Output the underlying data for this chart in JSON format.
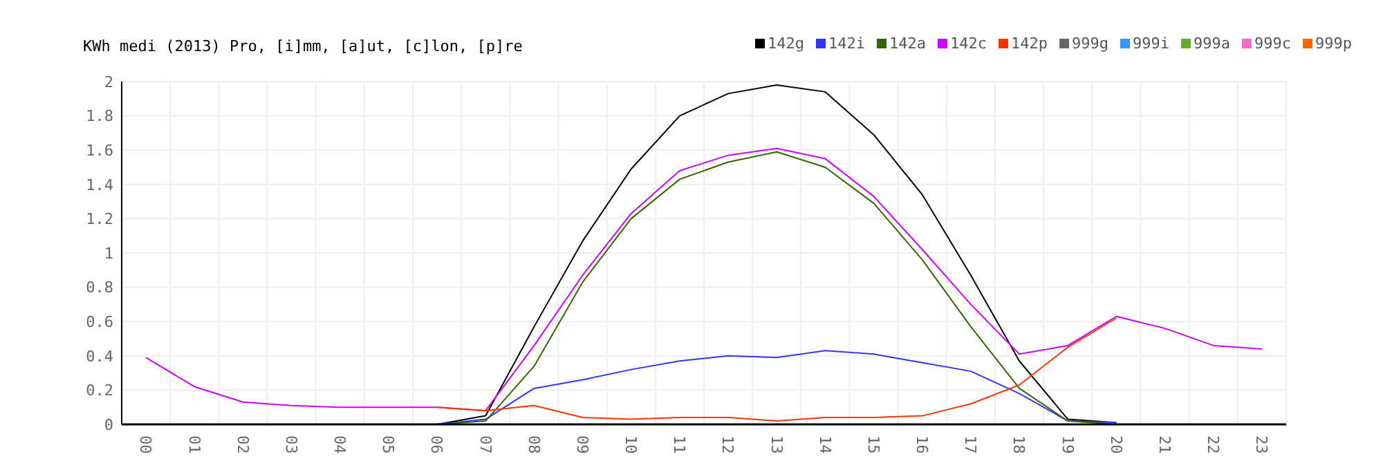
{
  "chart_data": {
    "type": "line",
    "title": "KWh medi (2013) Pro, [i]mm, [a]ut, [c]lon, [p]re",
    "categories": [
      "00",
      "01",
      "02",
      "03",
      "04",
      "05",
      "06",
      "07",
      "08",
      "09",
      "10",
      "11",
      "12",
      "13",
      "14",
      "15",
      "16",
      "17",
      "18",
      "19",
      "20",
      "21",
      "22",
      "23"
    ],
    "series": [
      {
        "name": "142g",
        "color": "#000000",
        "values": [
          null,
          null,
          null,
          null,
          null,
          null,
          0,
          0.05,
          0.57,
          1.07,
          1.49,
          1.8,
          1.93,
          1.98,
          1.94,
          1.69,
          1.34,
          0.87,
          0.37,
          0.03,
          0.01,
          null,
          null,
          null
        ]
      },
      {
        "name": "142i",
        "color": "#3333ff",
        "values": [
          null,
          null,
          null,
          null,
          null,
          null,
          0,
          0.03,
          0.21,
          0.26,
          0.32,
          0.37,
          0.4,
          0.39,
          0.43,
          0.41,
          0.36,
          0.31,
          0.18,
          0.02,
          0.01,
          null,
          null,
          null
        ]
      },
      {
        "name": "142a",
        "color": "#336600",
        "values": [
          null,
          null,
          null,
          null,
          null,
          null,
          0,
          0.02,
          0.34,
          0.83,
          1.2,
          1.43,
          1.53,
          1.59,
          1.5,
          1.29,
          0.96,
          0.57,
          0.21,
          0.02,
          0,
          null,
          null,
          null
        ]
      },
      {
        "name": "142c",
        "color": "#cc00ff",
        "values": [
          0.39,
          0.22,
          0.13,
          0.11,
          0.1,
          0.1,
          0.1,
          0.08,
          0.46,
          0.87,
          1.23,
          1.48,
          1.57,
          1.61,
          1.55,
          1.33,
          1.02,
          0.7,
          0.41,
          0.46,
          0.63,
          0.56,
          0.46,
          0.44
        ]
      },
      {
        "name": "142p",
        "color": "#ff3300",
        "values": [
          null,
          null,
          null,
          null,
          null,
          null,
          0.1,
          0.08,
          0.11,
          0.04,
          0.03,
          0.04,
          0.04,
          0.02,
          0.04,
          0.04,
          0.05,
          0.12,
          0.23,
          0.45,
          0.62,
          null,
          null,
          null
        ]
      },
      {
        "name": "999g",
        "color": "#666666",
        "values": [
          null,
          null,
          null,
          null,
          null,
          null,
          null,
          null,
          null,
          null,
          null,
          null,
          null,
          null,
          null,
          null,
          null,
          null,
          null,
          null,
          null,
          null,
          null,
          null
        ]
      },
      {
        "name": "999i",
        "color": "#3399ff",
        "values": [
          null,
          null,
          null,
          null,
          null,
          null,
          null,
          null,
          null,
          null,
          null,
          null,
          null,
          null,
          null,
          null,
          null,
          null,
          null,
          null,
          null,
          null,
          null,
          null
        ]
      },
      {
        "name": "999a",
        "color": "#66aa33",
        "values": [
          null,
          null,
          null,
          null,
          null,
          null,
          null,
          null,
          null,
          null,
          null,
          null,
          null,
          null,
          null,
          null,
          null,
          null,
          null,
          null,
          null,
          null,
          null,
          null
        ]
      },
      {
        "name": "999c",
        "color": "#ff66cc",
        "values": [
          null,
          null,
          null,
          null,
          null,
          null,
          null,
          null,
          null,
          null,
          null,
          null,
          null,
          null,
          null,
          null,
          null,
          null,
          null,
          null,
          null,
          null,
          null,
          null
        ]
      },
      {
        "name": "999p",
        "color": "#ff6600",
        "values": [
          null,
          null,
          null,
          null,
          null,
          null,
          null,
          null,
          null,
          null,
          null,
          null,
          null,
          null,
          null,
          null,
          null,
          null,
          null,
          null,
          null,
          null,
          null,
          null
        ]
      }
    ],
    "ylim": [
      0,
      2
    ],
    "yticks": [
      0,
      0.2,
      0.4,
      0.6,
      0.8,
      1,
      1.2,
      1.4,
      1.6,
      1.8,
      2
    ],
    "grid": true,
    "legend": "top right",
    "marker": "none",
    "line_style": "solid"
  }
}
